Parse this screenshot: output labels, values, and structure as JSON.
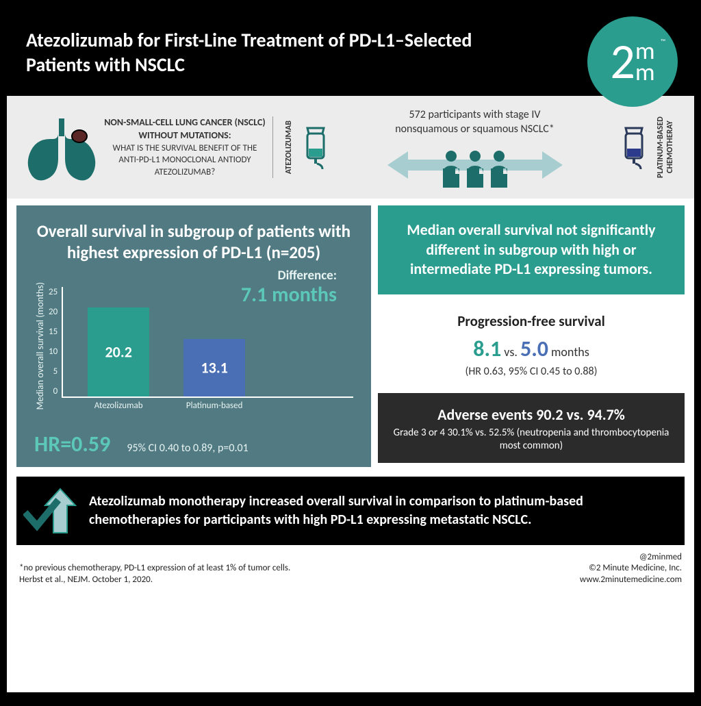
{
  "header": {
    "title": "Atezolizumab for First-Line Treatment of PD-L1–Selected Patients with NSCLC",
    "logo_number": "2",
    "logo_mm": "m\nm",
    "logo_tm": "™"
  },
  "intro": {
    "bold_line": "NON-SMALL-CELL LUNG CANCER (NSCLC) WITHOUT MUTATIONS:",
    "question": "WHAT IS THE SURVIVAL BENEFIT OF THE ANTI-PD-L1 MONOCLONAL ANTIODY ATEZOLIZUMAB?",
    "label_left": "ATEZOLIZUMAB",
    "label_right": "PLATINUM-BASED CHEMOTHERAY",
    "participants": "572 participants with stage IV nonsquamous or squamous NSCLC*"
  },
  "chart": {
    "title": "Overall survival in subgroup of patients with highest expression of PD-L1 (n=205)",
    "difference_label": "Difference:",
    "difference_value": "7.1 months",
    "y_label": "Median overall survival (months)",
    "y_ticks": [
      "25",
      "20",
      "15",
      "10",
      "5",
      "0"
    ],
    "y_max": 25,
    "bars": [
      {
        "label": "Atezolizumab",
        "value": 20.2,
        "color": "#2a9d8f"
      },
      {
        "label": "Platinum-based",
        "value": 13.1,
        "color": "#4a6fb5"
      }
    ],
    "hr_label": "HR=0.59",
    "hr_ci": "95% CI 0.40 to 0.89, p=0.01"
  },
  "right": {
    "teal_text": "Median overall survival not significantly different in subgroup with high or intermediate PD-L1 expressing tumors.",
    "pfs_title": "Progression-free survival",
    "pfs_val_a": "8.1",
    "pfs_vs": " vs. ",
    "pfs_val_b": "5.0",
    "pfs_unit": " months",
    "pfs_ci": "(HR 0.63, 95% CI 0.45 to 0.88)",
    "ae_title": "Adverse events 90.2 vs. 94.7%",
    "ae_sub": "Grade 3 or 4 30.1% vs. 52.5% (neutropenia and thrombocytopenia most common)"
  },
  "conclusion": "Atezolizumab monotherapy increased overall survival in comparison to platinum-based chemotherapies for participants with high PD-L1 expressing metastatic NSCLC.",
  "footer": {
    "note": "*no previous chemotherapy, PD-L1 expression of at least 1% of tumor cells.",
    "source": "Herbst et al., NEJM. October 1, 2020.",
    "handle": "@2minmed",
    "copyright": "©2 Minute Medicine, Inc.",
    "url": "www.2minutemedicine.com"
  },
  "colors": {
    "teal": "#2a9d8f",
    "dark_teal_panel": "#517a82",
    "accent_teal": "#5cc9b8",
    "blue": "#4a6fb5",
    "dark_gray": "#2b2b2b",
    "light_gray": "#ebeceb",
    "lungs": "#1d6d6a",
    "arrow_fill": "#a8cdd0"
  }
}
